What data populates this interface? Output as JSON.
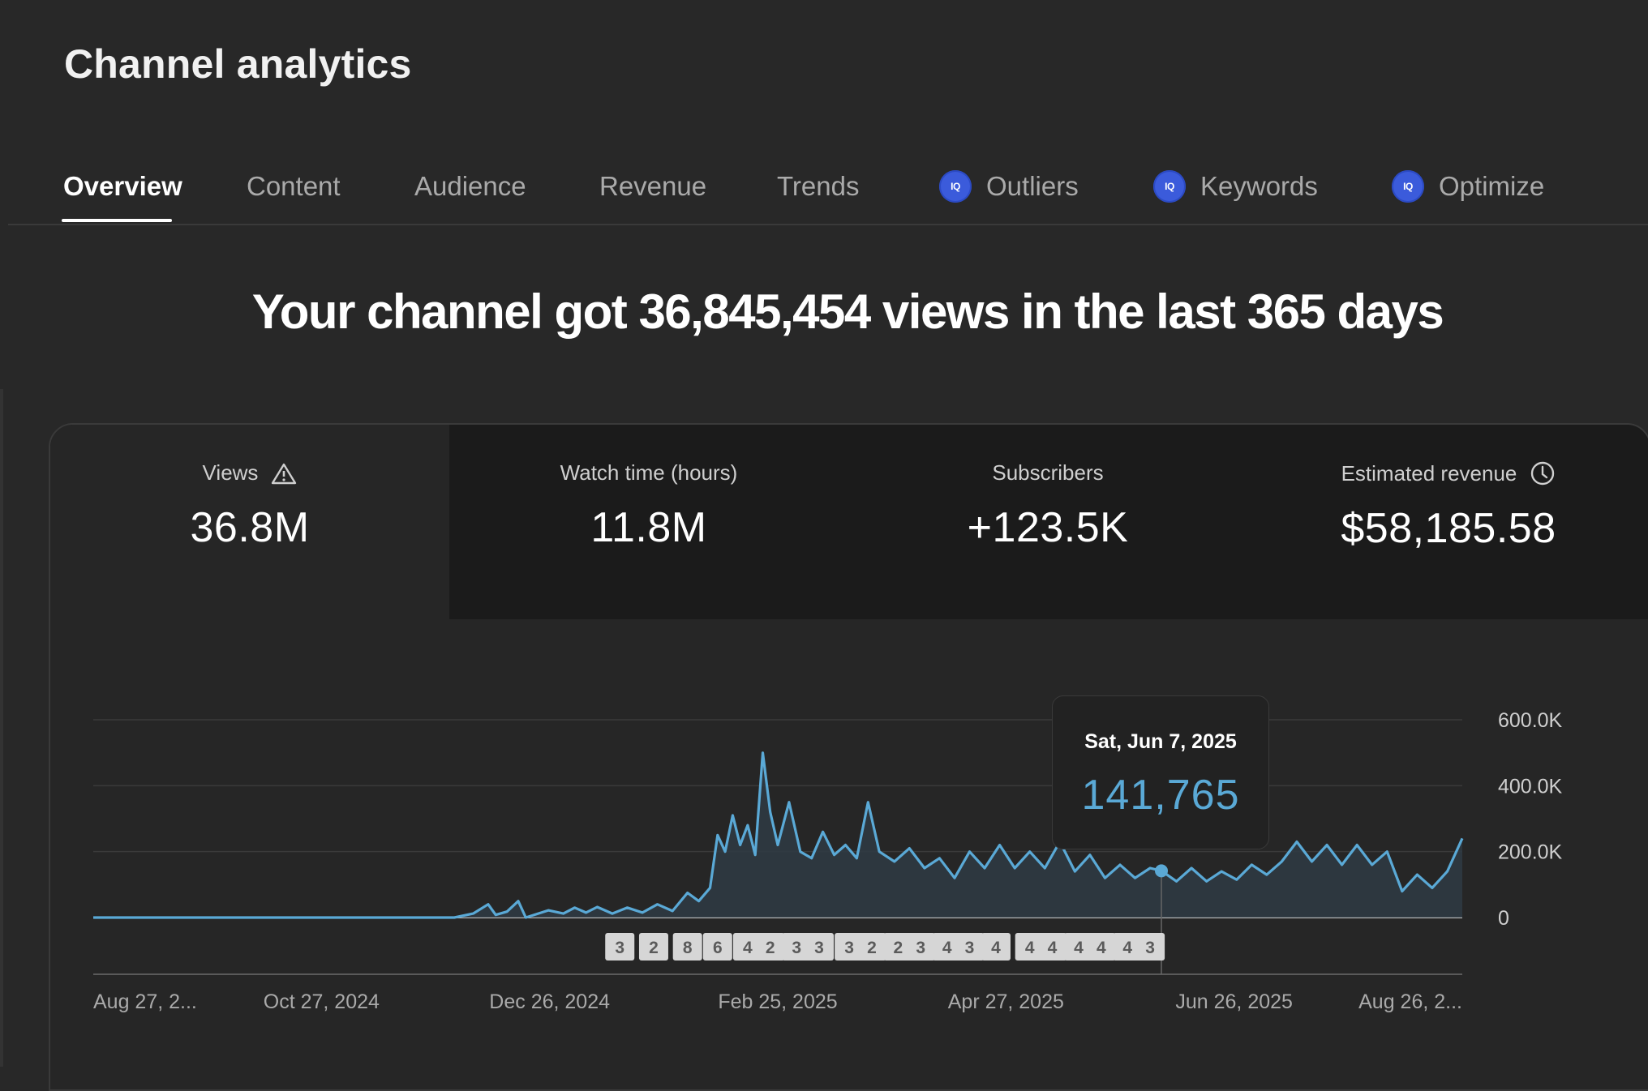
{
  "page": {
    "title": "Channel analytics"
  },
  "tabs": [
    {
      "label": "Overview",
      "active": true,
      "vidiq": false
    },
    {
      "label": "Content",
      "active": false,
      "vidiq": false
    },
    {
      "label": "Audience",
      "active": false,
      "vidiq": false
    },
    {
      "label": "Revenue",
      "active": false,
      "vidiq": false
    },
    {
      "label": "Trends",
      "active": false,
      "vidiq": false
    },
    {
      "label": "Outliers",
      "active": false,
      "vidiq": true
    },
    {
      "label": "Keywords",
      "active": false,
      "vidiq": true
    },
    {
      "label": "Optimize",
      "active": false,
      "vidiq": true
    }
  ],
  "vidiq_badge_text": "IQ",
  "headline": "Your channel got 36,845,454 views in the last 365 days",
  "metrics": [
    {
      "label": "Views",
      "value": "36.8M",
      "icon": "warning-icon"
    },
    {
      "label": "Watch time (hours)",
      "value": "11.8M",
      "icon": ""
    },
    {
      "label": "Subscribers",
      "value": "+123.5K",
      "icon": ""
    },
    {
      "label": "Estimated revenue",
      "value": "$58,185.58",
      "icon": "clock-icon"
    }
  ],
  "colors": {
    "line": "#5aa9d6",
    "area": "#2f3b44",
    "marker_bg": "#d6d6d6",
    "marker_text": "#5a5a5a"
  },
  "tooltip": {
    "date": "Sat, Jun 7, 2025",
    "value": "141,765"
  },
  "chart_data": {
    "type": "area",
    "title": "",
    "xlabel": "",
    "ylabel": "",
    "x_start": "2024-08-27",
    "x_end": "2025-08-26",
    "x_ticks": [
      "Aug 27, 2...",
      "Oct 27, 2024",
      "Dec 26, 2024",
      "Feb 25, 2025",
      "Apr 27, 2025",
      "Jun 26, 2025",
      "Aug 26, 2..."
    ],
    "y_ticks": [
      "600.0K",
      "400.0K",
      "200.0K",
      "0"
    ],
    "ylim": [
      0,
      600000
    ],
    "grid": true,
    "series": [
      {
        "points": [
          [
            "2024-08-27",
            0
          ],
          [
            "2024-12-01",
            0
          ],
          [
            "2024-12-06",
            12000
          ],
          [
            "2024-12-10",
            40000
          ],
          [
            "2024-12-12",
            8000
          ],
          [
            "2024-12-15",
            18000
          ],
          [
            "2024-12-18",
            50000
          ],
          [
            "2024-12-20",
            0
          ],
          [
            "2024-12-26",
            22000
          ],
          [
            "2024-12-30",
            12000
          ],
          [
            "2025-01-02",
            30000
          ],
          [
            "2025-01-05",
            15000
          ],
          [
            "2025-01-08",
            32000
          ],
          [
            "2025-01-12",
            12000
          ],
          [
            "2025-01-16",
            30000
          ],
          [
            "2025-01-20",
            15000
          ],
          [
            "2025-01-24",
            40000
          ],
          [
            "2025-01-28",
            20000
          ],
          [
            "2025-02-01",
            75000
          ],
          [
            "2025-02-04",
            50000
          ],
          [
            "2025-02-07",
            90000
          ],
          [
            "2025-02-09",
            250000
          ],
          [
            "2025-02-11",
            200000
          ],
          [
            "2025-02-13",
            310000
          ],
          [
            "2025-02-15",
            220000
          ],
          [
            "2025-02-17",
            280000
          ],
          [
            "2025-02-19",
            190000
          ],
          [
            "2025-02-21",
            500000
          ],
          [
            "2025-02-23",
            320000
          ],
          [
            "2025-02-25",
            220000
          ],
          [
            "2025-02-28",
            350000
          ],
          [
            "2025-03-03",
            200000
          ],
          [
            "2025-03-06",
            180000
          ],
          [
            "2025-03-09",
            260000
          ],
          [
            "2025-03-12",
            190000
          ],
          [
            "2025-03-15",
            220000
          ],
          [
            "2025-03-18",
            180000
          ],
          [
            "2025-03-21",
            350000
          ],
          [
            "2025-03-24",
            200000
          ],
          [
            "2025-03-28",
            170000
          ],
          [
            "2025-04-01",
            210000
          ],
          [
            "2025-04-05",
            150000
          ],
          [
            "2025-04-09",
            180000
          ],
          [
            "2025-04-13",
            120000
          ],
          [
            "2025-04-17",
            200000
          ],
          [
            "2025-04-21",
            150000
          ],
          [
            "2025-04-25",
            220000
          ],
          [
            "2025-04-29",
            150000
          ],
          [
            "2025-05-03",
            200000
          ],
          [
            "2025-05-07",
            150000
          ],
          [
            "2025-05-11",
            230000
          ],
          [
            "2025-05-15",
            140000
          ],
          [
            "2025-05-19",
            190000
          ],
          [
            "2025-05-23",
            120000
          ],
          [
            "2025-05-27",
            160000
          ],
          [
            "2025-05-31",
            120000
          ],
          [
            "2025-06-04",
            150000
          ],
          [
            "2025-06-07",
            141765
          ],
          [
            "2025-06-11",
            110000
          ],
          [
            "2025-06-15",
            150000
          ],
          [
            "2025-06-19",
            110000
          ],
          [
            "2025-06-23",
            140000
          ],
          [
            "2025-06-27",
            115000
          ],
          [
            "2025-07-01",
            160000
          ],
          [
            "2025-07-05",
            130000
          ],
          [
            "2025-07-09",
            170000
          ],
          [
            "2025-07-13",
            230000
          ],
          [
            "2025-07-17",
            170000
          ],
          [
            "2025-07-21",
            220000
          ],
          [
            "2025-07-25",
            160000
          ],
          [
            "2025-07-29",
            220000
          ],
          [
            "2025-08-02",
            160000
          ],
          [
            "2025-08-06",
            200000
          ],
          [
            "2025-08-10",
            80000
          ],
          [
            "2025-08-14",
            130000
          ],
          [
            "2025-08-18",
            90000
          ],
          [
            "2025-08-22",
            140000
          ],
          [
            "2025-08-26",
            240000
          ]
        ]
      }
    ],
    "highlight": {
      "x": "2025-06-07",
      "y": 141765
    },
    "markers": [
      {
        "x": "2025-01-14",
        "label": "3"
      },
      {
        "x": "2025-01-23",
        "label": "2"
      },
      {
        "x": "2025-02-01",
        "label": "8"
      },
      {
        "x": "2025-02-09",
        "label": "6"
      },
      {
        "x": "2025-02-17",
        "label": "4"
      },
      {
        "x": "2025-02-23",
        "label": "2"
      },
      {
        "x": "2025-03-02",
        "label": "3"
      },
      {
        "x": "2025-03-08",
        "label": "3"
      },
      {
        "x": "2025-03-16",
        "label": "3"
      },
      {
        "x": "2025-03-22",
        "label": "2"
      },
      {
        "x": "2025-03-29",
        "label": "2"
      },
      {
        "x": "2025-04-04",
        "label": "3"
      },
      {
        "x": "2025-04-11",
        "label": "4"
      },
      {
        "x": "2025-04-17",
        "label": "3"
      },
      {
        "x": "2025-04-24",
        "label": "4"
      },
      {
        "x": "2025-05-03",
        "label": "4"
      },
      {
        "x": "2025-05-09",
        "label": "4"
      },
      {
        "x": "2025-05-16",
        "label": "4"
      },
      {
        "x": "2025-05-22",
        "label": "4"
      },
      {
        "x": "2025-05-29",
        "label": "4"
      },
      {
        "x": "2025-06-04",
        "label": "3"
      }
    ]
  }
}
